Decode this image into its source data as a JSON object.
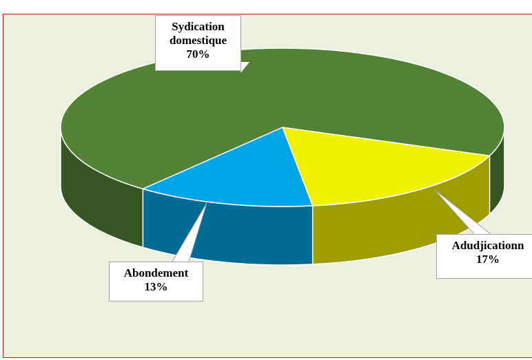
{
  "chart_data": {
    "type": "pie",
    "categories": [
      "Adudjicationn",
      "Abondement",
      "Sydication domestique"
    ],
    "values": [
      17,
      13,
      70
    ],
    "value_labels": [
      "17%",
      "13%",
      "70%"
    ],
    "colors": [
      "#f2f200",
      "#00a6e6",
      "#548235"
    ]
  }
}
